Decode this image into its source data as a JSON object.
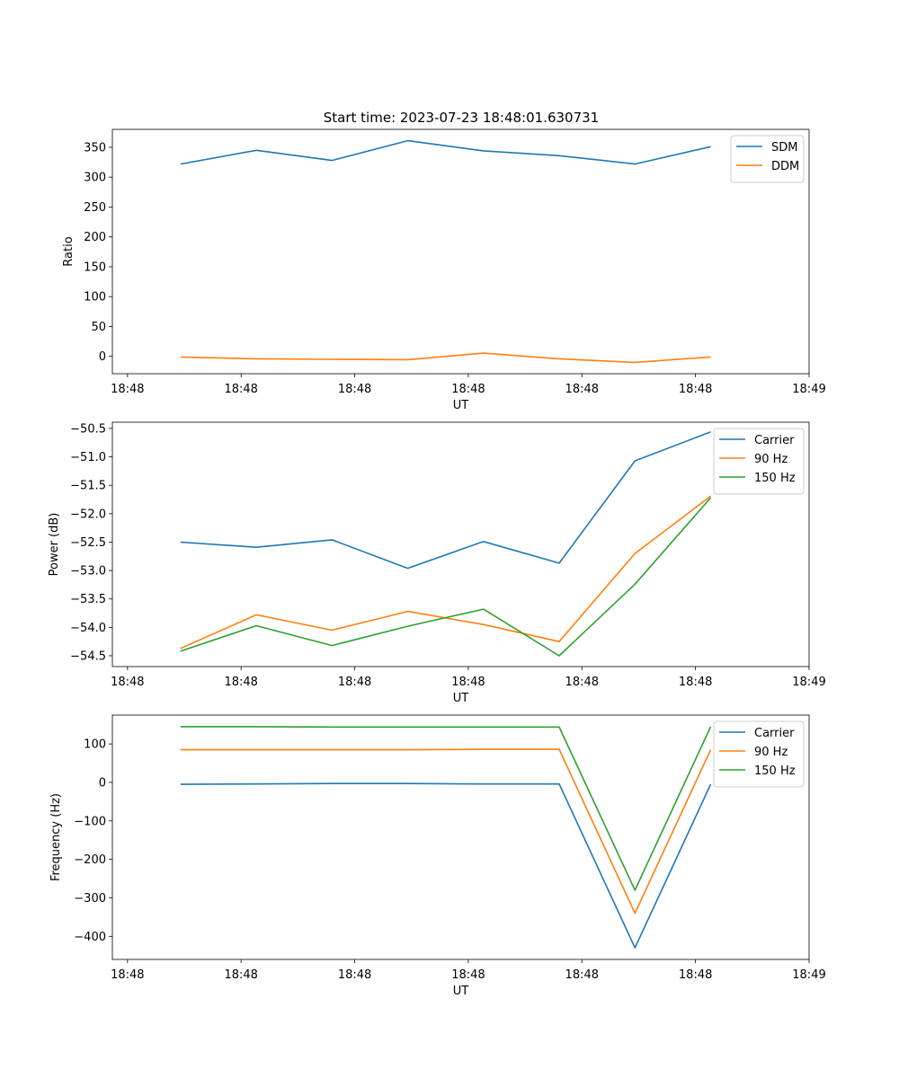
{
  "figure_title": "Start time: 2023-07-23 18:48:01.630731",
  "chart_data": [
    {
      "type": "line",
      "title": "Start time: 2023-07-23 18:48:01.630731",
      "xlabel": "UT",
      "ylabel": "Ratio",
      "x": [
        1,
        2,
        3,
        4,
        5,
        6,
        7,
        8
      ],
      "xlim": [
        0.1,
        9.3
      ],
      "ylim": [
        -29,
        380
      ],
      "yticks": [
        0,
        50,
        100,
        150,
        200,
        250,
        300,
        350
      ],
      "xticks": [
        0.3,
        1.8,
        3.3,
        4.8,
        6.3,
        7.8,
        9.3
      ],
      "xtick_labels": [
        "18:48",
        "18:48",
        "18:48",
        "18:48",
        "18:48",
        "18:48",
        "18:49"
      ],
      "legend_position": "top-right",
      "series": [
        {
          "name": "SDM",
          "color": "#1f77b4",
          "values": [
            322,
            345,
            328,
            361,
            344,
            336,
            322,
            351
          ]
        },
        {
          "name": "DDM",
          "color": "#ff7f0e",
          "values": [
            -1,
            -4,
            -5,
            -5.5,
            5.5,
            -4,
            -10,
            -1
          ]
        }
      ]
    },
    {
      "type": "line",
      "title": "",
      "xlabel": "UT",
      "ylabel": "Power (dB)",
      "x": [
        1,
        2,
        3,
        4,
        5,
        6,
        7,
        8
      ],
      "xlim": [
        0.1,
        9.3
      ],
      "ylim": [
        -54.69,
        -50.39
      ],
      "yticks": [
        -54.5,
        -54.0,
        -53.5,
        -53.0,
        -52.5,
        -52.0,
        -51.5,
        -51.0,
        -50.5
      ],
      "ytick_labels": [
        "−54.5",
        "−54.0",
        "−53.5",
        "−53.0",
        "−52.5",
        "−52.0",
        "−51.5",
        "−51.0",
        "−50.5"
      ],
      "xticks": [
        0.3,
        1.8,
        3.3,
        4.8,
        6.3,
        7.8,
        9.3
      ],
      "xtick_labels": [
        "18:48",
        "18:48",
        "18:48",
        "18:48",
        "18:48",
        "18:48",
        "18:49"
      ],
      "legend_position": "top-right",
      "series": [
        {
          "name": "Carrier",
          "color": "#1f77b4",
          "values": [
            -52.5,
            -52.59,
            -52.46,
            -52.96,
            -52.49,
            -52.87,
            -51.07,
            -50.56
          ]
        },
        {
          "name": "90 Hz",
          "color": "#ff7f0e",
          "values": [
            -54.37,
            -53.78,
            -54.05,
            -53.72,
            -53.95,
            -54.25,
            -52.7,
            -51.69
          ]
        },
        {
          "name": "150 Hz",
          "color": "#2ca02c",
          "values": [
            -54.42,
            -53.97,
            -54.32,
            -53.98,
            -53.68,
            -54.5,
            -53.24,
            -51.72
          ]
        }
      ]
    },
    {
      "type": "line",
      "title": "",
      "xlabel": "UT",
      "ylabel": "Frequency (Hz)",
      "x": [
        1,
        2,
        3,
        4,
        5,
        6,
        7,
        8
      ],
      "xlim": [
        0.1,
        9.3
      ],
      "ylim": [
        -460,
        175
      ],
      "yticks": [
        -400,
        -300,
        -200,
        -100,
        0,
        100
      ],
      "ytick_labels": [
        "−400",
        "−300",
        "−200",
        "−100",
        "0",
        "100"
      ],
      "xticks": [
        0.3,
        1.8,
        3.3,
        4.8,
        6.3,
        7.8,
        9.3
      ],
      "xtick_labels": [
        "18:48",
        "18:48",
        "18:48",
        "18:48",
        "18:48",
        "18:48",
        "18:49"
      ],
      "legend_position": "top-right",
      "series": [
        {
          "name": "Carrier",
          "color": "#1f77b4",
          "values": [
            -5,
            -4,
            -3,
            -3,
            -4,
            -4,
            -430,
            -5
          ]
        },
        {
          "name": "90 Hz",
          "color": "#ff7f0e",
          "values": [
            85,
            85,
            85,
            85,
            86,
            86,
            -340,
            85
          ]
        },
        {
          "name": "150 Hz",
          "color": "#2ca02c",
          "values": [
            145,
            145,
            144,
            144,
            144,
            144,
            -280,
            145
          ]
        }
      ]
    }
  ]
}
